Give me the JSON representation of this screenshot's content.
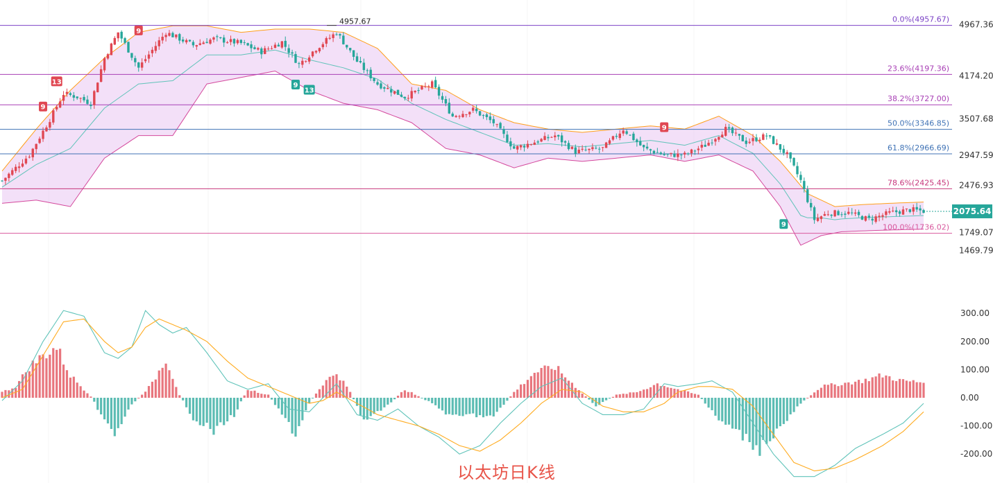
{
  "caption": "以太坊日K线",
  "chart_data": {
    "type": "candlestick",
    "price_axis": {
      "range": [
        1400,
        5100
      ],
      "ticks": [
        "4967.36",
        "4174.20",
        "3507.68",
        "2947.59",
        "2476.93",
        "1749.07",
        "1469.79"
      ],
      "tick_values": [
        4967.36,
        4174.2,
        3507.68,
        2947.59,
        2476.93,
        1749.07,
        1469.79
      ]
    },
    "current_price": {
      "label": "2075.64",
      "value": 2075.64,
      "color": "#26a69a"
    },
    "high_marker": {
      "label": "4957.67",
      "value": 4957.67
    },
    "fib_levels": [
      {
        "label": "0.0%(4957.67)",
        "value": 4957.67,
        "color": "#7b42c6"
      },
      {
        "label": "23.6%(4197.36)",
        "value": 4197.36,
        "color": "#a83fb5"
      },
      {
        "label": "38.2%(3727.00)",
        "value": 3727.0,
        "color": "#a83fb5"
      },
      {
        "label": "50.0%(3346.85)",
        "value": 3346.85,
        "color": "#3f72b5"
      },
      {
        "label": "61.8%(2966.69)",
        "value": 2966.69,
        "color": "#3f72b5"
      },
      {
        "label": "78.6%(2425.45)",
        "value": 2425.45,
        "color": "#c7367b"
      },
      {
        "label": "100.0%(1736.02)",
        "value": 1736.02,
        "color": "#d8589d"
      }
    ],
    "close_anchors": [
      [
        0,
        2550
      ],
      [
        8,
        2950
      ],
      [
        14,
        3500
      ],
      [
        18,
        3900
      ],
      [
        22,
        3850
      ],
      [
        26,
        3750
      ],
      [
        30,
        4450
      ],
      [
        34,
        4850
      ],
      [
        40,
        4300
      ],
      [
        48,
        4850
      ],
      [
        56,
        4650
      ],
      [
        62,
        4750
      ],
      [
        70,
        4680
      ],
      [
        76,
        4550
      ],
      [
        82,
        4700
      ],
      [
        87,
        4350
      ],
      [
        92,
        4600
      ],
      [
        98,
        4850
      ],
      [
        104,
        4400
      ],
      [
        110,
        4050
      ],
      [
        118,
        3850
      ],
      [
        126,
        4050
      ],
      [
        132,
        3550
      ],
      [
        138,
        3650
      ],
      [
        144,
        3450
      ],
      [
        150,
        3050
      ],
      [
        156,
        3150
      ],
      [
        162,
        3250
      ],
      [
        168,
        3000
      ],
      [
        176,
        3050
      ],
      [
        182,
        3350
      ],
      [
        188,
        3050
      ],
      [
        194,
        2950
      ],
      [
        200,
        2950
      ],
      [
        206,
        3100
      ],
      [
        212,
        3350
      ],
      [
        218,
        3150
      ],
      [
        224,
        3250
      ],
      [
        230,
        2950
      ],
      [
        234,
        2550
      ],
      [
        238,
        1950
      ],
      [
        242,
        2050
      ],
      [
        248,
        2050
      ],
      [
        254,
        1950
      ],
      [
        260,
        2050
      ],
      [
        266,
        2100
      ],
      [
        270,
        2080
      ]
    ],
    "band_upper_anchors": [
      [
        0,
        2700
      ],
      [
        10,
        3350
      ],
      [
        20,
        3950
      ],
      [
        30,
        4450
      ],
      [
        40,
        4850
      ],
      [
        50,
        4950
      ],
      [
        60,
        4950
      ],
      [
        70,
        4850
      ],
      [
        80,
        4900
      ],
      [
        90,
        4900
      ],
      [
        100,
        4850
      ],
      [
        110,
        4600
      ],
      [
        120,
        4050
      ],
      [
        130,
        3950
      ],
      [
        140,
        3650
      ],
      [
        150,
        3450
      ],
      [
        160,
        3350
      ],
      [
        170,
        3300
      ],
      [
        180,
        3350
      ],
      [
        190,
        3400
      ],
      [
        200,
        3350
      ],
      [
        210,
        3550
      ],
      [
        220,
        3250
      ],
      [
        228,
        2850
      ],
      [
        236,
        2350
      ],
      [
        244,
        2150
      ],
      [
        252,
        2180
      ],
      [
        260,
        2200
      ],
      [
        270,
        2220
      ]
    ],
    "band_lower_anchors": [
      [
        0,
        2200
      ],
      [
        10,
        2250
      ],
      [
        20,
        2150
      ],
      [
        30,
        2900
      ],
      [
        40,
        3250
      ],
      [
        50,
        3250
      ],
      [
        60,
        4050
      ],
      [
        70,
        4150
      ],
      [
        80,
        4250
      ],
      [
        90,
        3950
      ],
      [
        100,
        3750
      ],
      [
        110,
        3650
      ],
      [
        120,
        3450
      ],
      [
        130,
        3050
      ],
      [
        140,
        2950
      ],
      [
        150,
        2750
      ],
      [
        160,
        2900
      ],
      [
        170,
        2850
      ],
      [
        180,
        2900
      ],
      [
        190,
        2950
      ],
      [
        200,
        2850
      ],
      [
        210,
        2950
      ],
      [
        220,
        2700
      ],
      [
        228,
        2150
      ],
      [
        234,
        1550
      ],
      [
        240,
        1700
      ],
      [
        246,
        1760
      ],
      [
        256,
        1780
      ],
      [
        270,
        1800
      ]
    ],
    "markers": [
      {
        "label": "9",
        "bar": 12,
        "price": 3700,
        "color": "#e04752"
      },
      {
        "label": "13",
        "bar": 16,
        "price": 4090,
        "color": "#e04752"
      },
      {
        "label": "9",
        "bar": 40,
        "price": 4880,
        "color": "#e04752"
      },
      {
        "label": "9",
        "bar": 86,
        "price": 4040,
        "color": "#26a69a"
      },
      {
        "label": "13",
        "bar": 90,
        "price": 3960,
        "color": "#26a69a"
      },
      {
        "label": "9",
        "bar": 194,
        "price": 3380,
        "color": "#e04752"
      },
      {
        "label": "9",
        "bar": 229,
        "price": 1880,
        "color": "#26a69a"
      }
    ],
    "macd_axis": {
      "range": [
        -250,
        350
      ],
      "ticks": [
        "300.00",
        "200.00",
        "100.00",
        "0.00",
        "-100.00",
        "-200.00"
      ],
      "tick_values": [
        300,
        200,
        100,
        0,
        -100,
        -200
      ]
    },
    "macd_hist_anchors": [
      [
        0,
        20
      ],
      [
        4,
        40
      ],
      [
        8,
        110
      ],
      [
        12,
        150
      ],
      [
        16,
        180
      ],
      [
        20,
        80
      ],
      [
        26,
        5
      ],
      [
        30,
        -80
      ],
      [
        33,
        -140
      ],
      [
        37,
        -40
      ],
      [
        40,
        0
      ],
      [
        44,
        50
      ],
      [
        48,
        140
      ],
      [
        52,
        10
      ],
      [
        56,
        -70
      ],
      [
        62,
        -120
      ],
      [
        68,
        -60
      ],
      [
        72,
        30
      ],
      [
        78,
        10
      ],
      [
        82,
        -60
      ],
      [
        86,
        -130
      ],
      [
        90,
        -20
      ],
      [
        94,
        50
      ],
      [
        98,
        90
      ],
      [
        102,
        20
      ],
      [
        106,
        -80
      ],
      [
        112,
        -40
      ],
      [
        118,
        30
      ],
      [
        126,
        -20
      ],
      [
        132,
        -70
      ],
      [
        138,
        -60
      ],
      [
        144,
        -70
      ],
      [
        150,
        20
      ],
      [
        156,
        90
      ],
      [
        162,
        110
      ],
      [
        168,
        40
      ],
      [
        174,
        -30
      ],
      [
        180,
        10
      ],
      [
        186,
        20
      ],
      [
        192,
        50
      ],
      [
        198,
        30
      ],
      [
        204,
        10
      ],
      [
        210,
        -80
      ],
      [
        214,
        -110
      ],
      [
        222,
        -180
      ],
      [
        230,
        -80
      ],
      [
        234,
        -20
      ],
      [
        240,
        40
      ],
      [
        246,
        50
      ],
      [
        252,
        60
      ],
      [
        258,
        80
      ],
      [
        264,
        60
      ],
      [
        270,
        55
      ]
    ],
    "macd_line_anchors": [
      [
        0,
        -10
      ],
      [
        6,
        60
      ],
      [
        12,
        200
      ],
      [
        18,
        310
      ],
      [
        24,
        290
      ],
      [
        30,
        160
      ],
      [
        34,
        140
      ],
      [
        38,
        180
      ],
      [
        42,
        310
      ],
      [
        46,
        260
      ],
      [
        50,
        230
      ],
      [
        54,
        250
      ],
      [
        60,
        160
      ],
      [
        66,
        60
      ],
      [
        72,
        30
      ],
      [
        78,
        50
      ],
      [
        84,
        -40
      ],
      [
        90,
        -50
      ],
      [
        94,
        0
      ],
      [
        98,
        50
      ],
      [
        104,
        -60
      ],
      [
        110,
        -80
      ],
      [
        116,
        -40
      ],
      [
        122,
        -100
      ],
      [
        128,
        -140
      ],
      [
        134,
        -200
      ],
      [
        140,
        -170
      ],
      [
        146,
        -90
      ],
      [
        152,
        -20
      ],
      [
        158,
        40
      ],
      [
        164,
        70
      ],
      [
        170,
        -20
      ],
      [
        176,
        -60
      ],
      [
        182,
        -60
      ],
      [
        188,
        -40
      ],
      [
        194,
        50
      ],
      [
        198,
        40
      ],
      [
        204,
        50
      ],
      [
        208,
        60
      ],
      [
        214,
        20
      ],
      [
        220,
        -90
      ],
      [
        226,
        -200
      ],
      [
        232,
        -280
      ],
      [
        238,
        -280
      ],
      [
        244,
        -240
      ],
      [
        250,
        -180
      ],
      [
        258,
        -130
      ],
      [
        264,
        -90
      ],
      [
        270,
        -20
      ]
    ],
    "signal_line_anchors": [
      [
        0,
        0
      ],
      [
        6,
        30
      ],
      [
        12,
        150
      ],
      [
        18,
        270
      ],
      [
        24,
        280
      ],
      [
        30,
        200
      ],
      [
        34,
        160
      ],
      [
        38,
        180
      ],
      [
        42,
        250
      ],
      [
        46,
        280
      ],
      [
        50,
        260
      ],
      [
        54,
        240
      ],
      [
        60,
        200
      ],
      [
        66,
        130
      ],
      [
        72,
        70
      ],
      [
        78,
        40
      ],
      [
        84,
        10
      ],
      [
        90,
        -20
      ],
      [
        94,
        -10
      ],
      [
        98,
        20
      ],
      [
        104,
        -20
      ],
      [
        110,
        -60
      ],
      [
        116,
        -80
      ],
      [
        122,
        -100
      ],
      [
        128,
        -130
      ],
      [
        134,
        -170
      ],
      [
        140,
        -190
      ],
      [
        146,
        -150
      ],
      [
        152,
        -90
      ],
      [
        158,
        -20
      ],
      [
        164,
        30
      ],
      [
        170,
        20
      ],
      [
        176,
        -30
      ],
      [
        182,
        -50
      ],
      [
        188,
        -50
      ],
      [
        194,
        -20
      ],
      [
        198,
        20
      ],
      [
        204,
        40
      ],
      [
        208,
        40
      ],
      [
        214,
        30
      ],
      [
        220,
        -30
      ],
      [
        226,
        -130
      ],
      [
        232,
        -230
      ],
      [
        238,
        -260
      ],
      [
        244,
        -250
      ],
      [
        250,
        -220
      ],
      [
        258,
        -170
      ],
      [
        264,
        -120
      ],
      [
        270,
        -50
      ]
    ]
  },
  "colors": {
    "up": "#e04752",
    "down": "#26a69a",
    "band_fill": "#e9c7f2",
    "band_upper": "#ff9f1a",
    "band_lower": "#d4489c",
    "mid_line": "#5fc3b9",
    "macd_line": "#5fc3b9",
    "signal_line": "#ffab1f",
    "axis_text": "#333333",
    "grid": "#f4f4f4"
  }
}
